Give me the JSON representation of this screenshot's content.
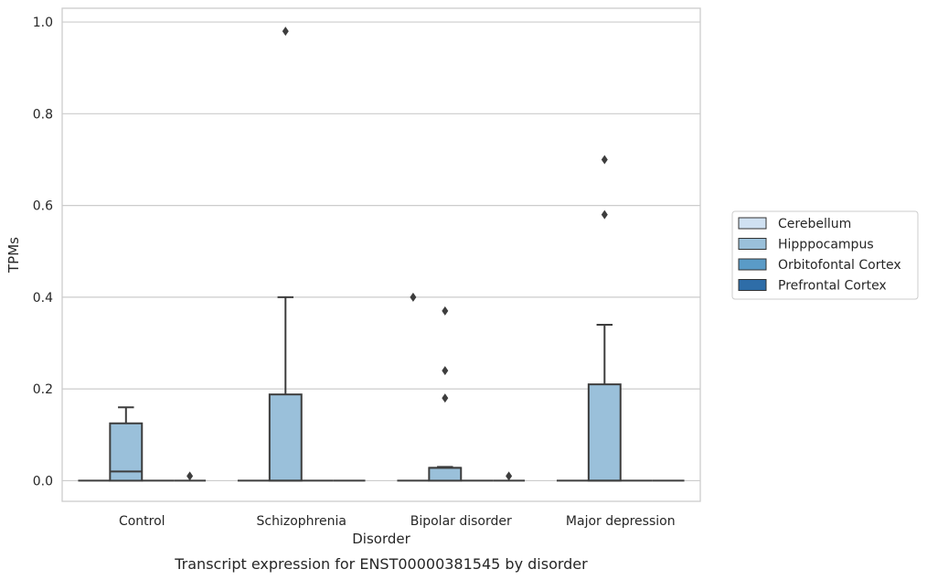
{
  "chart_data": {
    "type": "box",
    "caption": "Transcript expression for ENST00000381545 by disorder",
    "xlabel": "Disorder",
    "ylabel": "TPMs",
    "ylim": [
      -0.045,
      1.03
    ],
    "yticks": [
      "0.0",
      "0.2",
      "0.4",
      "0.6",
      "0.8",
      "1.0"
    ],
    "ytick_values": [
      0.0,
      0.2,
      0.4,
      0.6,
      0.8,
      1.0
    ],
    "grid": true,
    "legend_position": "right",
    "categories": [
      "Control",
      "Schizophrenia",
      "Bipolar disorder",
      "Major depression"
    ],
    "series": [
      {
        "name": "Cerebellum",
        "color": "#d0e1f2",
        "boxes": [
          {
            "q1": 0,
            "median": 0,
            "q3": 0,
            "whisker_low": 0,
            "whisker_high": 0,
            "outliers": []
          },
          {
            "q1": 0,
            "median": 0,
            "q3": 0,
            "whisker_low": 0,
            "whisker_high": 0,
            "outliers": []
          },
          {
            "q1": 0,
            "median": 0,
            "q3": 0,
            "whisker_low": 0,
            "whisker_high": 0,
            "outliers": [
              0.4
            ]
          },
          {
            "q1": 0,
            "median": 0,
            "q3": 0,
            "whisker_low": 0,
            "whisker_high": 0,
            "outliers": []
          }
        ]
      },
      {
        "name": "Hipppocampus",
        "color": "#9ac0da",
        "boxes": [
          {
            "q1": 0,
            "median": 0.02,
            "q3": 0.125,
            "whisker_low": 0,
            "whisker_high": 0.16,
            "outliers": []
          },
          {
            "q1": 0,
            "median": 0,
            "q3": 0.188,
            "whisker_low": 0,
            "whisker_high": 0.4,
            "outliers": [
              0.98
            ]
          },
          {
            "q1": 0,
            "median": 0.028,
            "q3": 0.028,
            "whisker_low": 0,
            "whisker_high": 0.03,
            "outliers": [
              0.18,
              0.24,
              0.37
            ]
          },
          {
            "q1": 0,
            "median": 0,
            "q3": 0.21,
            "whisker_low": 0,
            "whisker_high": 0.34,
            "outliers": [
              0.58,
              0.7
            ]
          }
        ]
      },
      {
        "name": "Orbitofontal Cortex",
        "color": "#5a9bc7",
        "boxes": [
          {
            "q1": 0,
            "median": 0,
            "q3": 0,
            "whisker_low": 0,
            "whisker_high": 0,
            "outliers": []
          },
          {
            "q1": 0,
            "median": 0,
            "q3": 0,
            "whisker_low": 0,
            "whisker_high": 0,
            "outliers": []
          },
          {
            "q1": 0,
            "median": 0,
            "q3": 0,
            "whisker_low": 0,
            "whisker_high": 0,
            "outliers": []
          },
          {
            "q1": 0,
            "median": 0,
            "q3": 0,
            "whisker_low": 0,
            "whisker_high": 0,
            "outliers": []
          }
        ]
      },
      {
        "name": "Prefrontal Cortex",
        "color": "#2e6da8",
        "boxes": [
          {
            "q1": 0,
            "median": 0,
            "q3": 0,
            "whisker_low": 0,
            "whisker_high": 0,
            "outliers": [
              0.01
            ]
          },
          {
            "q1": 0,
            "median": 0,
            "q3": 0,
            "whisker_low": 0,
            "whisker_high": 0,
            "outliers": []
          },
          {
            "q1": 0,
            "median": 0,
            "q3": 0,
            "whisker_low": 0,
            "whisker_high": 0,
            "outliers": [
              0.01
            ]
          },
          {
            "q1": 0,
            "median": 0,
            "q3": 0,
            "whisker_low": 0,
            "whisker_high": 0,
            "outliers": []
          }
        ]
      }
    ],
    "colors": {
      "grid": "#cccccc",
      "frame": "#cccccc",
      "box_edge": "#3d3d3d",
      "legend_border": "#cccccc"
    }
  }
}
